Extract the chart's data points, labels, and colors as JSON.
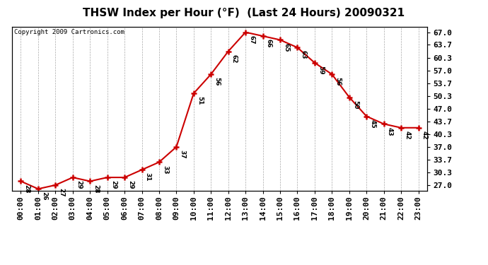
{
  "title": "THSW Index per Hour (°F)  (Last 24 Hours) 20090321",
  "copyright": "Copyright 2009 Cartronics.com",
  "hours": [
    0,
    1,
    2,
    3,
    4,
    5,
    6,
    7,
    8,
    9,
    10,
    11,
    12,
    13,
    14,
    15,
    16,
    17,
    18,
    19,
    20,
    21,
    22,
    23
  ],
  "values": [
    28,
    26,
    27,
    29,
    28,
    29,
    29,
    31,
    33,
    37,
    51,
    56,
    62,
    67,
    66,
    65,
    63,
    59,
    56,
    50,
    45,
    43,
    42,
    42
  ],
  "x_labels": [
    "00:00",
    "01:00",
    "02:00",
    "03:00",
    "04:00",
    "05:00",
    "06:00",
    "07:00",
    "08:00",
    "09:00",
    "10:00",
    "11:00",
    "12:00",
    "13:00",
    "14:00",
    "15:00",
    "16:00",
    "17:00",
    "18:00",
    "19:00",
    "20:00",
    "21:00",
    "22:00",
    "23:00"
  ],
  "y_ticks": [
    27.0,
    30.3,
    33.7,
    37.0,
    40.3,
    43.7,
    47.0,
    50.3,
    53.7,
    57.0,
    60.3,
    63.7,
    67.0
  ],
  "ylim": [
    25.5,
    68.5
  ],
  "line_color": "#cc0000",
  "marker_color": "#cc0000",
  "bg_color": "#ffffff",
  "plot_bg_color": "#ffffff",
  "grid_color": "#aaaaaa",
  "title_fontsize": 11,
  "copyright_fontsize": 6.5,
  "tick_fontsize": 8,
  "annotation_fontsize": 6.5
}
